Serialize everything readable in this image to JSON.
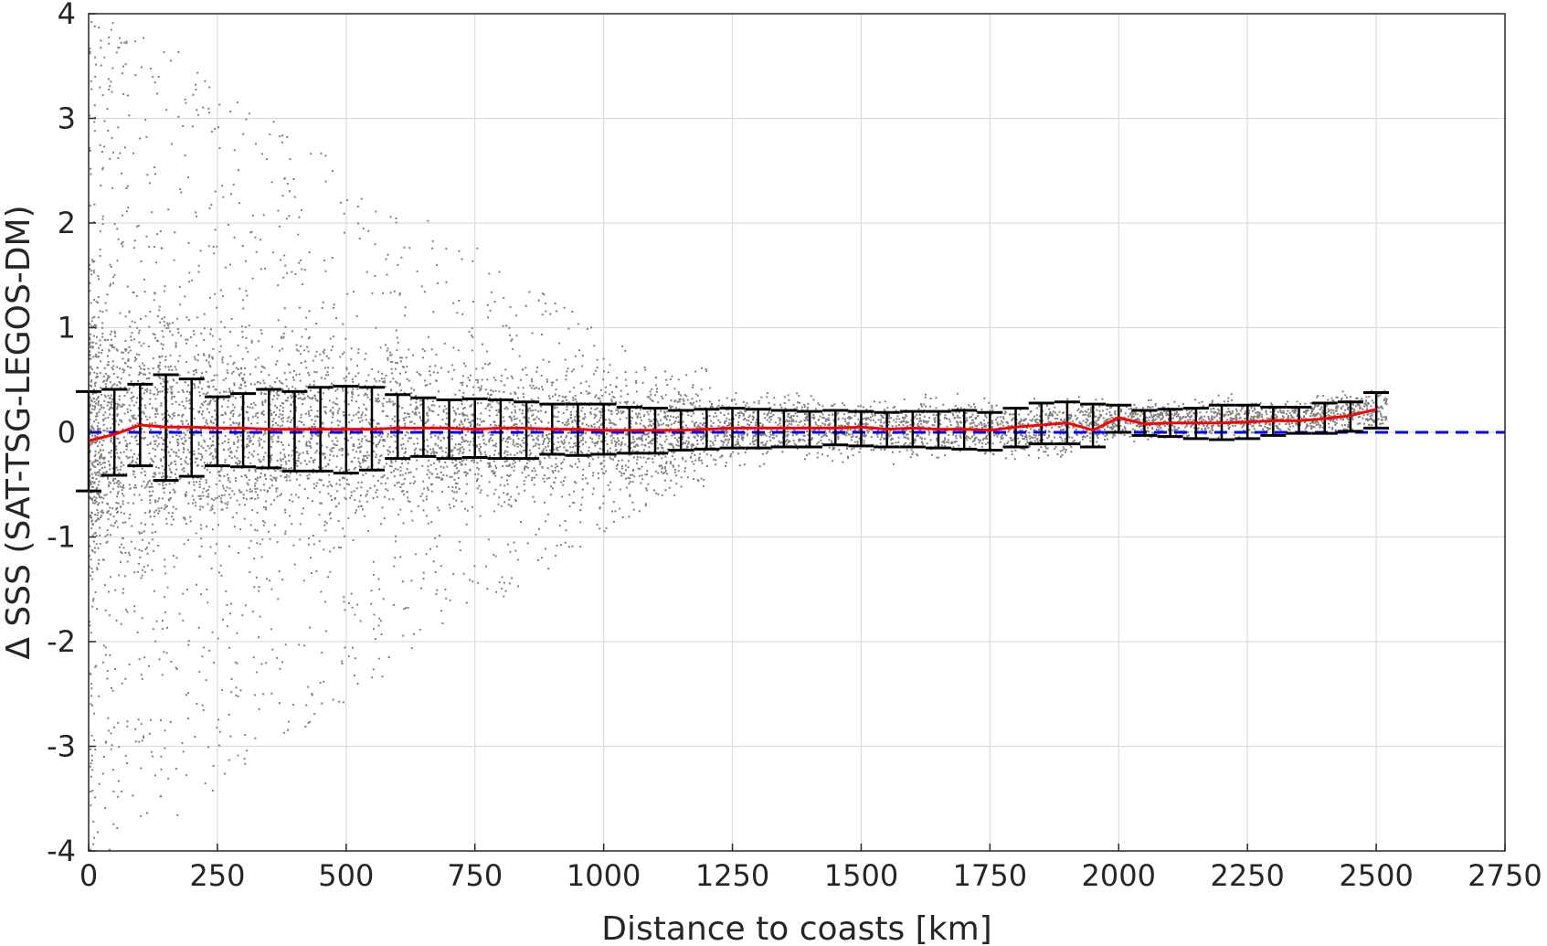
{
  "chart_data": {
    "type": "scatter",
    "title": "",
    "xlabel": "Distance to coasts [km]",
    "ylabel": "Δ SSS (SAT-TSG-LEGOS-DM)",
    "xlim": [
      0,
      2750
    ],
    "ylim": [
      -4,
      4
    ],
    "x_ticks": [
      0,
      250,
      500,
      750,
      1000,
      1250,
      1500,
      1750,
      2000,
      2250,
      2500,
      2750
    ],
    "y_ticks": [
      -4,
      -3,
      -2,
      -1,
      0,
      1,
      2,
      3,
      4
    ],
    "x_tick_labels": [
      "0",
      "250",
      "500",
      "750",
      "1000",
      "1250",
      "1500",
      "1750",
      "2000",
      "2250",
      "2500",
      "2750"
    ],
    "y_tick_labels": [
      "-4",
      "-3",
      "-2",
      "-1",
      "0",
      "1",
      "2",
      "3",
      "4"
    ],
    "grid": true,
    "legend": "none",
    "colors": {
      "scatter": "#808080",
      "mean_line": "#ff0000",
      "error_bars": "#000000",
      "zero_line": "#0000ff"
    },
    "zero_reference": 0,
    "scatter_envelope": {
      "distance_km": [
        0,
        100,
        200,
        300,
        400,
        500,
        600,
        700,
        800,
        900,
        1000,
        1100,
        1200,
        1300,
        1400,
        1500,
        1600,
        1700,
        1800,
        1900,
        2000,
        2100,
        2200,
        2300,
        2400,
        2500
      ],
      "upper": [
        1.8,
        1.7,
        1.5,
        1.3,
        1.2,
        1.1,
        1.0,
        0.9,
        0.8,
        0.75,
        0.7,
        0.6,
        0.5,
        0.45,
        0.45,
        0.4,
        0.4,
        0.4,
        0.4,
        0.4,
        0.35,
        0.35,
        0.4,
        0.35,
        0.4,
        0.5
      ],
      "lower": [
        -1.8,
        -1.7,
        -1.5,
        -1.3,
        -1.2,
        -1.1,
        -1.0,
        -0.9,
        -0.8,
        -0.75,
        -0.7,
        -0.6,
        -0.45,
        -0.35,
        -0.3,
        -0.3,
        -0.3,
        -0.3,
        -0.3,
        -0.3,
        -0.1,
        -0.1,
        -0.1,
        -0.05,
        -0.05,
        -0.05
      ]
    },
    "error_bars": [
      {
        "x": 0,
        "mean": -0.08,
        "low": -0.56,
        "high": 0.39
      },
      {
        "x": 50,
        "mean": -0.02,
        "low": -0.41,
        "high": 0.41
      },
      {
        "x": 100,
        "mean": 0.07,
        "low": -0.32,
        "high": 0.46
      },
      {
        "x": 150,
        "mean": 0.05,
        "low": -0.46,
        "high": 0.55
      },
      {
        "x": 200,
        "mean": 0.05,
        "low": -0.42,
        "high": 0.51
      },
      {
        "x": 250,
        "mean": 0.04,
        "low": -0.32,
        "high": 0.34
      },
      {
        "x": 300,
        "mean": 0.04,
        "low": -0.33,
        "high": 0.37
      },
      {
        "x": 350,
        "mean": 0.03,
        "low": -0.34,
        "high": 0.41
      },
      {
        "x": 400,
        "mean": 0.03,
        "low": -0.37,
        "high": 0.39
      },
      {
        "x": 450,
        "mean": 0.03,
        "low": -0.37,
        "high": 0.43
      },
      {
        "x": 500,
        "mean": 0.03,
        "low": -0.39,
        "high": 0.44
      },
      {
        "x": 550,
        "mean": 0.03,
        "low": -0.36,
        "high": 0.43
      },
      {
        "x": 600,
        "mean": 0.04,
        "low": -0.25,
        "high": 0.36
      },
      {
        "x": 650,
        "mean": 0.04,
        "low": -0.23,
        "high": 0.33
      },
      {
        "x": 700,
        "mean": 0.04,
        "low": -0.25,
        "high": 0.31
      },
      {
        "x": 750,
        "mean": 0.03,
        "low": -0.24,
        "high": 0.32
      },
      {
        "x": 800,
        "mean": 0.04,
        "low": -0.25,
        "high": 0.31
      },
      {
        "x": 850,
        "mean": 0.04,
        "low": -0.25,
        "high": 0.29
      },
      {
        "x": 900,
        "mean": 0.03,
        "low": -0.21,
        "high": 0.27
      },
      {
        "x": 950,
        "mean": 0.03,
        "low": -0.22,
        "high": 0.27
      },
      {
        "x": 1000,
        "mean": 0.02,
        "low": -0.21,
        "high": 0.27
      },
      {
        "x": 1050,
        "mean": 0.02,
        "low": -0.2,
        "high": 0.24
      },
      {
        "x": 1100,
        "mean": 0.02,
        "low": -0.2,
        "high": 0.23
      },
      {
        "x": 1150,
        "mean": 0.02,
        "low": -0.17,
        "high": 0.21
      },
      {
        "x": 1200,
        "mean": 0.03,
        "low": -0.16,
        "high": 0.22
      },
      {
        "x": 1250,
        "mean": 0.04,
        "low": -0.15,
        "high": 0.23
      },
      {
        "x": 1300,
        "mean": 0.04,
        "low": -0.15,
        "high": 0.22
      },
      {
        "x": 1350,
        "mean": 0.04,
        "low": -0.14,
        "high": 0.21
      },
      {
        "x": 1400,
        "mean": 0.04,
        "low": -0.14,
        "high": 0.2
      },
      {
        "x": 1450,
        "mean": 0.04,
        "low": -0.12,
        "high": 0.21
      },
      {
        "x": 1500,
        "mean": 0.05,
        "low": -0.13,
        "high": 0.2
      },
      {
        "x": 1550,
        "mean": 0.03,
        "low": -0.14,
        "high": 0.19
      },
      {
        "x": 1600,
        "mean": 0.04,
        "low": -0.14,
        "high": 0.2
      },
      {
        "x": 1650,
        "mean": 0.03,
        "low": -0.15,
        "high": 0.2
      },
      {
        "x": 1700,
        "mean": 0.03,
        "low": -0.16,
        "high": 0.21
      },
      {
        "x": 1750,
        "mean": 0.02,
        "low": -0.17,
        "high": 0.19
      },
      {
        "x": 1800,
        "mean": 0.05,
        "low": -0.14,
        "high": 0.23
      },
      {
        "x": 1850,
        "mean": 0.07,
        "low": -0.11,
        "high": 0.28
      },
      {
        "x": 1900,
        "mean": 0.09,
        "low": -0.11,
        "high": 0.29
      },
      {
        "x": 1950,
        "mean": 0.02,
        "low": -0.14,
        "high": 0.27
      },
      {
        "x": 2000,
        "mean": 0.14,
        "low": 0.0,
        "high": 0.26
      },
      {
        "x": 2050,
        "mean": 0.08,
        "low": -0.03,
        "high": 0.21
      },
      {
        "x": 2100,
        "mean": 0.09,
        "low": -0.04,
        "high": 0.22
      },
      {
        "x": 2150,
        "mean": 0.09,
        "low": -0.06,
        "high": 0.23
      },
      {
        "x": 2200,
        "mean": 0.09,
        "low": -0.07,
        "high": 0.26
      },
      {
        "x": 2250,
        "mean": 0.1,
        "low": -0.06,
        "high": 0.26
      },
      {
        "x": 2300,
        "mean": 0.11,
        "low": -0.03,
        "high": 0.24
      },
      {
        "x": 2350,
        "mean": 0.11,
        "low": -0.01,
        "high": 0.24
      },
      {
        "x": 2400,
        "mean": 0.13,
        "low": -0.01,
        "high": 0.28
      },
      {
        "x": 2450,
        "mean": 0.16,
        "low": 0.01,
        "high": 0.29
      },
      {
        "x": 2500,
        "mean": 0.22,
        "low": 0.04,
        "high": 0.38
      }
    ]
  }
}
